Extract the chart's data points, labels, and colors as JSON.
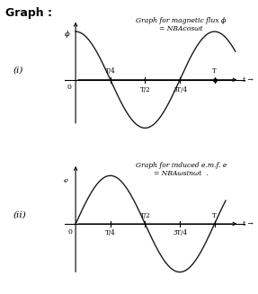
{
  "title1_line1": "Graph for magnetic flux ϕ",
  "title1_line2": "= NBAcosωt",
  "title2_line1": "Graph for induced e.m.f. e",
  "title2_line2": "= NBAωsinωt  .",
  "graph_label": "Graph :",
  "label_i": "(i)",
  "label_ii": "(ii)",
  "ylabel1": "ϕ",
  "ylabel2": "e",
  "xlabel": "t →",
  "bg_color": "#ffffff",
  "curve_color": "#1a1a1a",
  "axis_color": "#000000"
}
